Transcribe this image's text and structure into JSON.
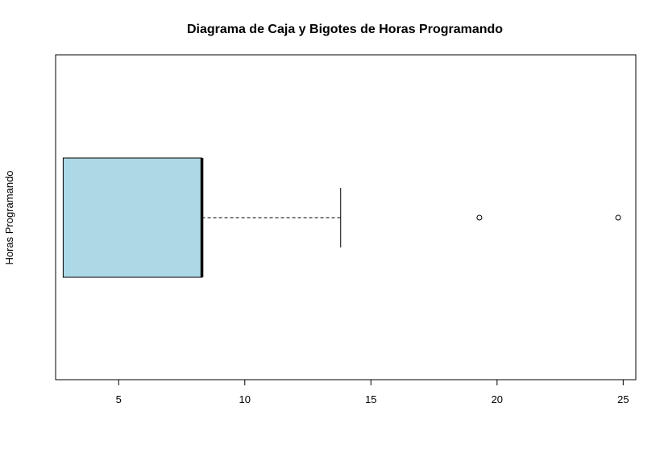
{
  "chart_data": {
    "type": "boxplot",
    "orientation": "horizontal",
    "title": "Diagrama de Caja y Bigotes de Horas Programando",
    "xlabel": "",
    "ylabel": "Horas Programando",
    "xlim": [
      2.5,
      25.5
    ],
    "xticks": [
      5,
      10,
      15,
      20,
      25
    ],
    "tick_labels": [
      "5",
      "10",
      "15",
      "20",
      "25"
    ],
    "box": {
      "q1": 2.8,
      "median": 8.3,
      "q3": 8.3,
      "whisker_low": 2.8,
      "whisker_high": 13.8,
      "outliers": [
        19.3,
        24.8
      ]
    },
    "colors": {
      "box_fill": "#ADD8E6",
      "line": "#000000"
    },
    "grid": false
  }
}
